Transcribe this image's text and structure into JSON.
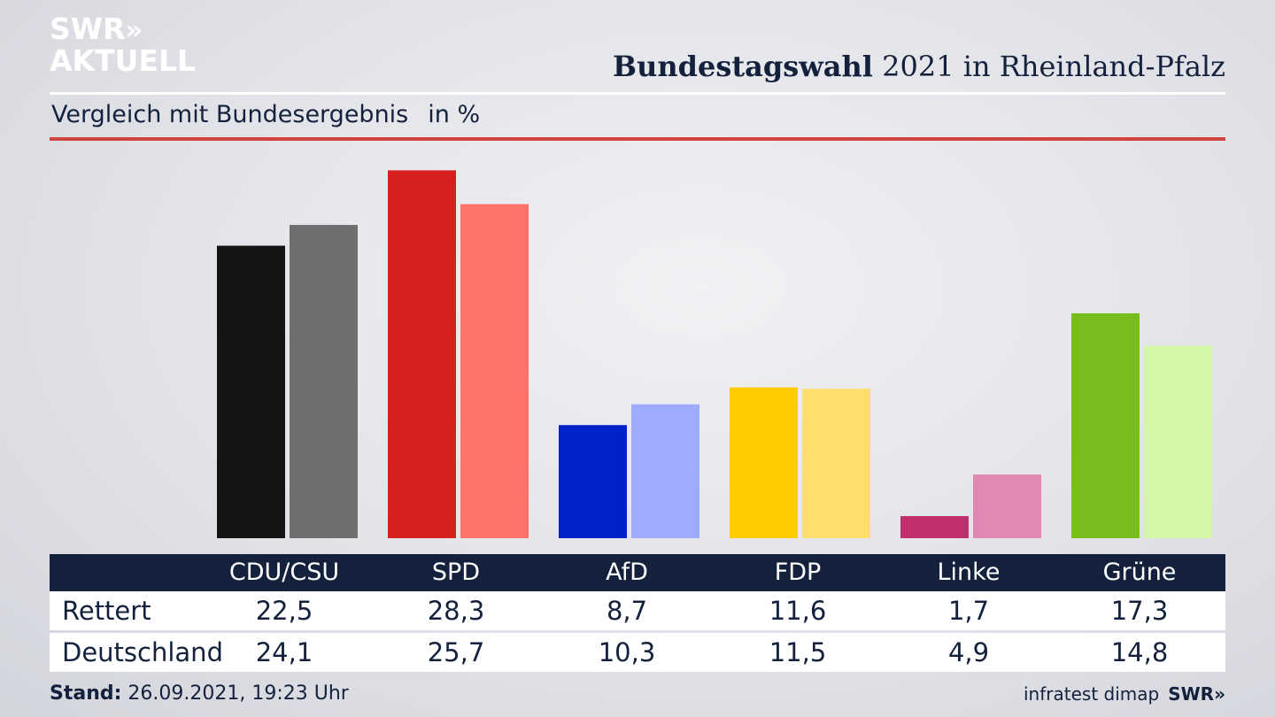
{
  "brand": {
    "line1": "SWR",
    "chevrons": "»",
    "line2": "AKTUELL"
  },
  "header": {
    "title_bold": "Bundestagswahl",
    "title_rest": "2021 in Rheinland-Pfalz"
  },
  "subheader": {
    "label": "Vergleich mit Bundesergebnis",
    "unit": "in %"
  },
  "chart_data": {
    "type": "bar",
    "categories": [
      "CDU/CSU",
      "SPD",
      "AfD",
      "FDP",
      "Linke",
      "Grüne"
    ],
    "series": [
      {
        "name": "Rettert",
        "values": [
          22.5,
          28.3,
          8.7,
          11.6,
          1.7,
          17.3
        ],
        "colors": [
          "#141414",
          "#d71f1f",
          "#0020c8",
          "#ffcc00",
          "#c0306e",
          "#78bd1e"
        ]
      },
      {
        "name": "Deutschland",
        "values": [
          24.1,
          25.7,
          10.3,
          11.5,
          4.9,
          14.8
        ],
        "colors": [
          "#706f6e",
          "#ff726c",
          "#9eabff",
          "#ffdd6e",
          "#e088b4",
          "#d4f6a6"
        ]
      }
    ],
    "ylim": [
      0,
      28.6
    ],
    "grid": false,
    "legend": "table-below"
  },
  "table": {
    "rows": [
      {
        "label": "Rettert",
        "values": [
          "22,5",
          "28,3",
          "8,7",
          "11,6",
          "1,7",
          "17,3"
        ]
      },
      {
        "label": "Deutschland",
        "values": [
          "24,1",
          "25,7",
          "10,3",
          "11,5",
          "4,9",
          "14,8"
        ]
      }
    ]
  },
  "footer": {
    "stand_label": "Stand:",
    "stand_value": "26.09.2021, 19:23 Uhr",
    "source": "infratest dimap",
    "source_brand": "SWR»"
  }
}
